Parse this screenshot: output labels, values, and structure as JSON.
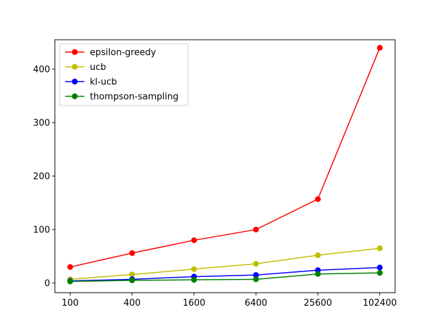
{
  "chart_data": {
    "type": "line",
    "title": "",
    "xlabel": "",
    "ylabel": "",
    "x_scale": "log",
    "categories": [
      "100",
      "400",
      "1600",
      "6400",
      "25600",
      "102400"
    ],
    "ylim": [
      -18,
      455
    ],
    "yticks": [
      0,
      100,
      200,
      300,
      400
    ],
    "grid": false,
    "legend_position": "top-left",
    "series": [
      {
        "name": "epsilon-greedy",
        "color": "#ff0000",
        "values": [
          30,
          56,
          80,
          100,
          157,
          440
        ]
      },
      {
        "name": "ucb",
        "color": "#bfbf00",
        "values": [
          7,
          16,
          26,
          36,
          52,
          65
        ]
      },
      {
        "name": "kl-ucb",
        "color": "#0000ff",
        "values": [
          4,
          7,
          12,
          15,
          24,
          29
        ]
      },
      {
        "name": "thompson-sampling",
        "color": "#008000",
        "values": [
          3,
          5,
          6,
          7,
          17,
          19
        ]
      }
    ]
  }
}
